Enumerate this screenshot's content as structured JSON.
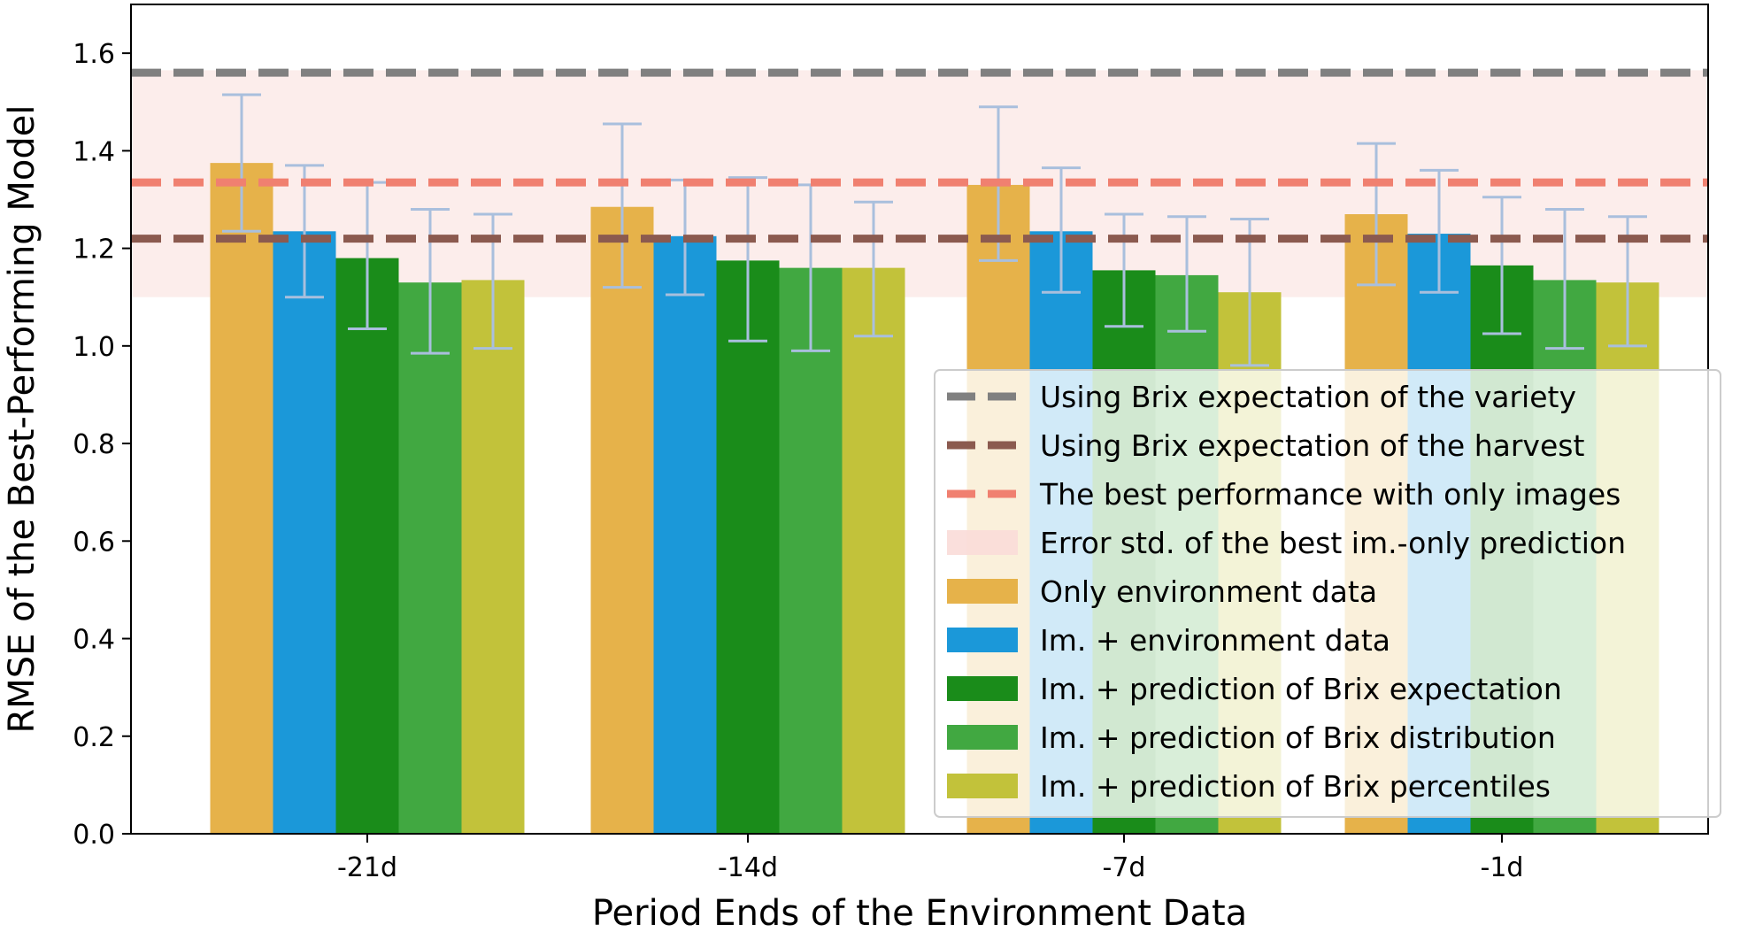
{
  "chart_data": {
    "type": "bar",
    "title": "",
    "xlabel": "Period Ends of the Environment Data",
    "ylabel": "RMSE of the Best-Performing Model",
    "ylim": [
      0,
      1.7
    ],
    "yticks": [
      "0.0",
      "0.2",
      "0.4",
      "0.6",
      "0.8",
      "1.0",
      "1.2",
      "1.4",
      "1.6"
    ],
    "categories": [
      "-21d",
      "-14d",
      "-7d",
      "-1d"
    ],
    "series": [
      {
        "name": "Only environment data",
        "color": "#E6B24A",
        "values": [
          1.375,
          1.285,
          1.33,
          1.27
        ],
        "err_low": [
          1.235,
          1.12,
          1.175,
          1.125
        ],
        "err_high": [
          1.515,
          1.455,
          1.49,
          1.415
        ]
      },
      {
        "name": "Im. + environment data",
        "color": "#1B98D9",
        "values": [
          1.235,
          1.225,
          1.235,
          1.23
        ],
        "err_low": [
          1.1,
          1.105,
          1.11,
          1.11
        ],
        "err_high": [
          1.37,
          1.34,
          1.365,
          1.36
        ]
      },
      {
        "name": "Im. + prediction of Brix expectation",
        "color": "#1A8C1A",
        "values": [
          1.18,
          1.175,
          1.155,
          1.165
        ],
        "err_low": [
          1.035,
          1.01,
          1.04,
          1.025
        ],
        "err_high": [
          1.335,
          1.345,
          1.27,
          1.305
        ]
      },
      {
        "name": "Im. + prediction of Brix distribution",
        "color": "#41A841",
        "values": [
          1.13,
          1.16,
          1.145,
          1.135
        ],
        "err_low": [
          0.985,
          0.99,
          1.03,
          0.995
        ],
        "err_high": [
          1.28,
          1.33,
          1.265,
          1.28
        ]
      },
      {
        "name": "Im. + prediction of Brix percentiles",
        "color": "#C2C23A",
        "values": [
          1.135,
          1.16,
          1.11,
          1.13
        ],
        "err_low": [
          0.995,
          1.02,
          0.96,
          1.0
        ],
        "err_high": [
          1.27,
          1.295,
          1.26,
          1.265
        ]
      }
    ],
    "error_bar_color": "#A9BFDD",
    "reference_lines": [
      {
        "name": "Using Brix expectation of the variety",
        "value": 1.56,
        "color": "#808080"
      },
      {
        "name": "Using Brix expectation of the harvest",
        "value": 1.22,
        "color": "#8B5A4F"
      },
      {
        "name": "The best performance with only images",
        "value": 1.335,
        "color": "#F08070"
      }
    ],
    "shaded_band": {
      "name": "Error std. of the best im.-only prediction",
      "range": [
        1.1,
        1.565
      ],
      "color": "#FADBD8"
    },
    "legend_location": "lower-right"
  }
}
